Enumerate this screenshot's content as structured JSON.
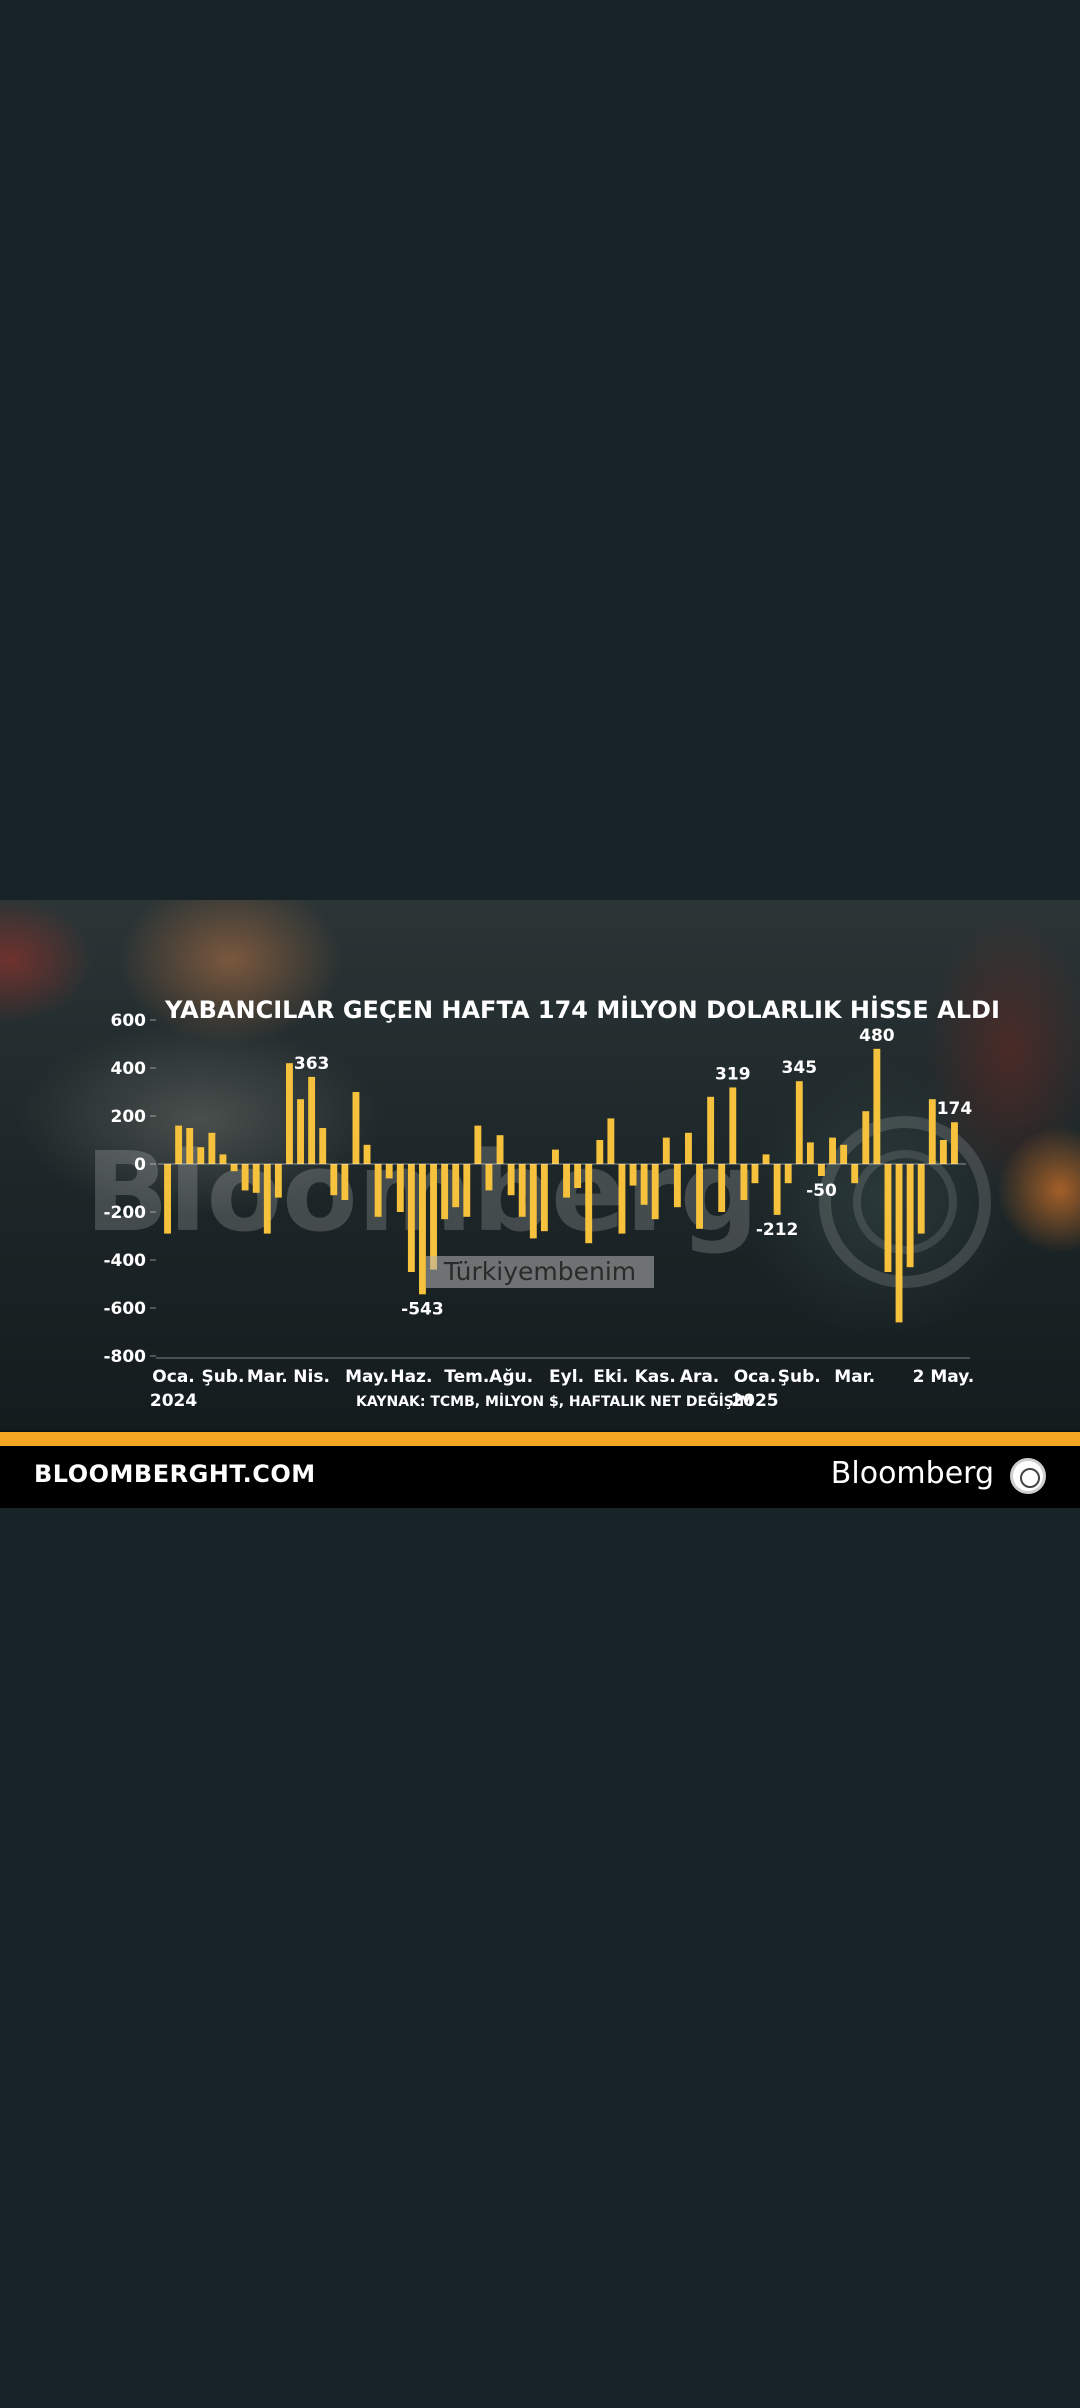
{
  "footer": {
    "site": "BLOOMBERGHT.COM",
    "brand": "Bloomberg"
  },
  "watermarks": {
    "bloomberg": "Bloomberg",
    "turkiyembenim": "Türkiyembenim"
  },
  "colors": {
    "bar": "#f6c23e",
    "accent": "#f5a623"
  },
  "chart_data": {
    "type": "bar",
    "title": "YABANCILAR GEÇEN HAFTA 174 MİLYON DOLARLIK HİSSE ALDI",
    "source": "KAYNAK: TCMB, MİLYON $, HAFTALIK NET DEĞİŞİM",
    "ylim": [
      -800,
      600
    ],
    "yticks": [
      600,
      400,
      200,
      0,
      -200,
      -400,
      -600,
      -800
    ],
    "x_labels": [
      {
        "label": "Oca.",
        "sub": "2024",
        "week": 0
      },
      {
        "label": "Şub.",
        "sub": "",
        "week": 5
      },
      {
        "label": "Mar.",
        "sub": "",
        "week": 9
      },
      {
        "label": "Nis.",
        "sub": "",
        "week": 13
      },
      {
        "label": "May.",
        "sub": "",
        "week": 18
      },
      {
        "label": "Haz.",
        "sub": "",
        "week": 22
      },
      {
        "label": "Tem.",
        "sub": "",
        "week": 27
      },
      {
        "label": "Ağu.",
        "sub": "",
        "week": 31
      },
      {
        "label": "Eyl.",
        "sub": "",
        "week": 36
      },
      {
        "label": "Eki.",
        "sub": "",
        "week": 40
      },
      {
        "label": "Kas.",
        "sub": "",
        "week": 44
      },
      {
        "label": "Ara.",
        "sub": "",
        "week": 48
      },
      {
        "label": "Oca.",
        "sub": "2025",
        "week": 53
      },
      {
        "label": "Şub.",
        "sub": "",
        "week": 57
      },
      {
        "label": "Mar.",
        "sub": "",
        "week": 62
      },
      {
        "label": "2 May.",
        "sub": "",
        "week": 70
      }
    ],
    "values": [
      -290,
      160,
      150,
      70,
      130,
      40,
      -30,
      -110,
      -120,
      -290,
      -140,
      420,
      270,
      363,
      150,
      -130,
      -150,
      300,
      80,
      -220,
      -60,
      -200,
      -450,
      -543,
      -440,
      -230,
      -180,
      -220,
      160,
      -110,
      120,
      -130,
      -220,
      -310,
      -280,
      60,
      -140,
      -100,
      -330,
      100,
      190,
      -290,
      -90,
      -170,
      -230,
      110,
      -180,
      130,
      -270,
      280,
      -200,
      319,
      -150,
      -80,
      40,
      -212,
      -80,
      345,
      90,
      -50,
      110,
      80,
      -80,
      220,
      480,
      -450,
      -660,
      -430,
      -290,
      270,
      100,
      174
    ],
    "annotations": [
      {
        "week": 13,
        "value": 363,
        "text": "363"
      },
      {
        "week": 23,
        "value": -543,
        "text": "-543"
      },
      {
        "week": 51,
        "value": 319,
        "text": "319"
      },
      {
        "week": 55,
        "value": -212,
        "text": "-212"
      },
      {
        "week": 57,
        "value": 345,
        "text": "345"
      },
      {
        "week": 59,
        "value": -50,
        "text": "-50"
      },
      {
        "week": 64,
        "value": 480,
        "text": "480"
      },
      {
        "week": 71,
        "value": 174,
        "text": "174"
      }
    ]
  }
}
